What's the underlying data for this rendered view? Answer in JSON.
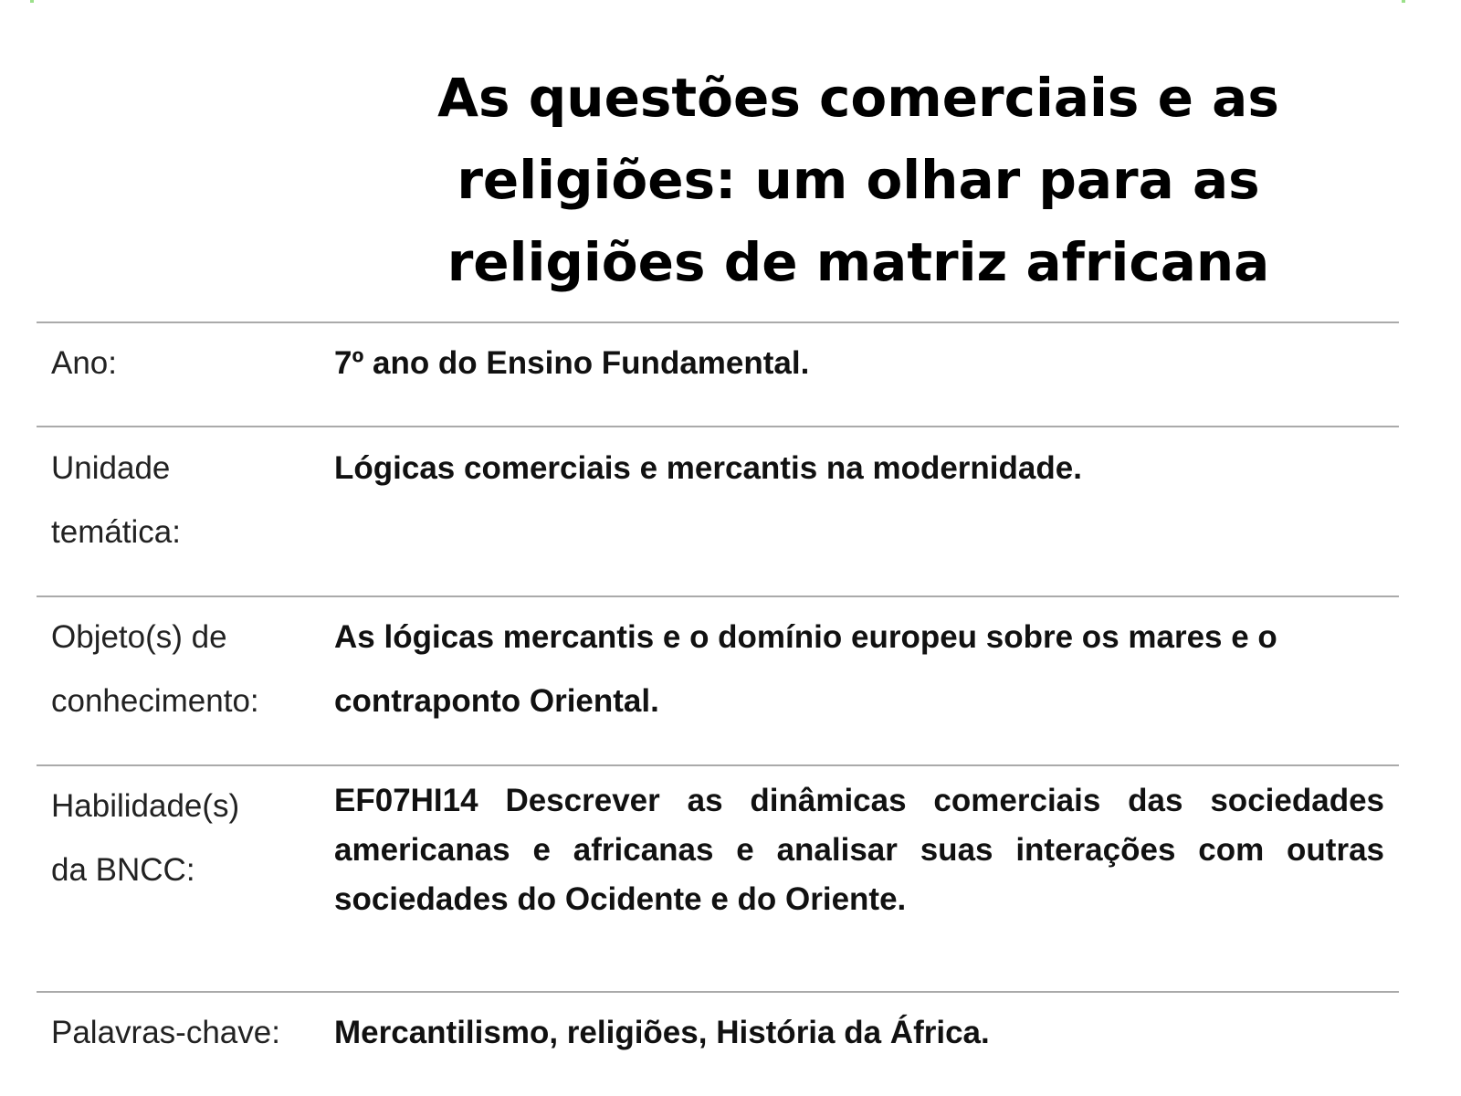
{
  "title": "As questões comerciais e as religiões: um olhar para as religiões de matriz africana",
  "rows": [
    {
      "label": "Ano:",
      "value": "7º ano do Ensino Fundamental."
    },
    {
      "label": "Unidade temática:",
      "value": "Lógicas comerciais e mercantis na modernidade."
    },
    {
      "label": "Objeto(s) de conhecimento:",
      "value": "As lógicas mercantis e o domínio europeu sobre os mares e o contraponto Oriental."
    },
    {
      "label": "Habilidade(s) da BNCC:",
      "value": "EF07HI14 Descrever as dinâmicas comerciais das sociedades americanas e africanas e analisar suas interações com outras sociedades do Ocidente e do Oriente."
    },
    {
      "label": "Palavras-chave:",
      "value": "Mercantilismo, religiões, História da África."
    }
  ]
}
